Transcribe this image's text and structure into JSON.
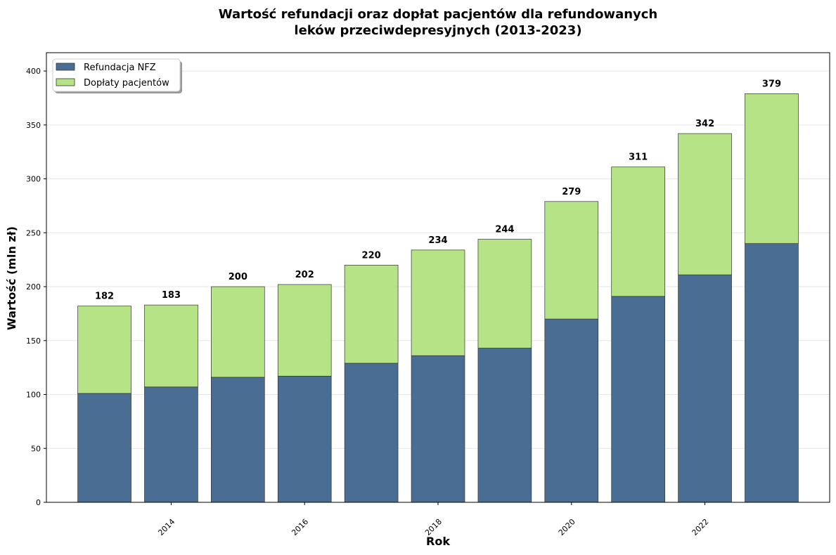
{
  "colors": {
    "nfz": "#4a6d94",
    "patient": "#b6e385",
    "edge": "#333333",
    "grid": "#e6e6e6"
  },
  "chart_data": {
    "type": "bar",
    "stacked": true,
    "title_line1": "Wartość refundacji oraz dopłat pacjentów dla refundowanych",
    "title_line2": "leków przeciwdepresyjnych (2013-2023)",
    "xlabel": "Rok",
    "ylabel": "Wartość (mln zł)",
    "categories": [
      2013,
      2014,
      2015,
      2016,
      2017,
      2018,
      2019,
      2020,
      2021,
      2022,
      2023
    ],
    "x_ticks": [
      "2014",
      "2016",
      "2018",
      "2020",
      "2022"
    ],
    "x_tick_values": [
      2014,
      2016,
      2018,
      2020,
      2022
    ],
    "y_ticks": [
      "0",
      "50",
      "100",
      "150",
      "200",
      "250",
      "300",
      "350",
      "400"
    ],
    "y_tick_values": [
      0,
      50,
      100,
      150,
      200,
      250,
      300,
      350,
      400
    ],
    "ylim": [
      0,
      417
    ],
    "xlim": [
      2012.13,
      2023.87
    ],
    "grid": true,
    "legend_position": "top-left",
    "series": [
      {
        "name": "Refundacja NFZ",
        "values": [
          101,
          107,
          116,
          117,
          129,
          136,
          143,
          170,
          191,
          211,
          240
        ]
      },
      {
        "name": "Dopłaty pacjentów",
        "values": [
          81,
          76,
          84,
          85,
          91,
          98,
          101,
          109,
          120,
          131,
          139
        ]
      }
    ],
    "totals": [
      "182",
      "183",
      "200",
      "202",
      "220",
      "234",
      "244",
      "279",
      "311",
      "342",
      "379"
    ]
  }
}
